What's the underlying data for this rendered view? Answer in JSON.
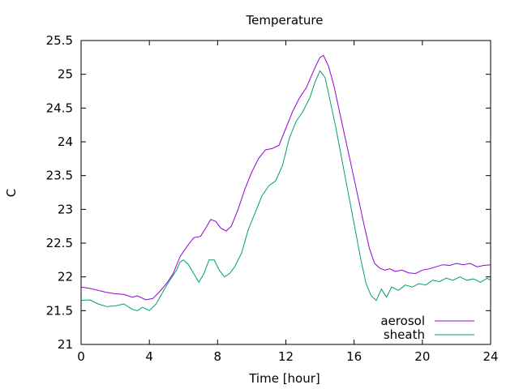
{
  "chart_data": {
    "type": "line",
    "title": "Temperature",
    "xlabel": "Time [hour]",
    "ylabel": "C",
    "xlim": [
      0,
      24
    ],
    "ylim": [
      21,
      25.5
    ],
    "xticks": [
      0,
      4,
      8,
      12,
      16,
      20,
      24
    ],
    "yticks": [
      21,
      21.5,
      22,
      22.5,
      23,
      23.5,
      24,
      24.5,
      25,
      25.5
    ],
    "grid": false,
    "legend_position": "bottom-right",
    "series": [
      {
        "name": "aerosol",
        "color": "#9400d3",
        "points": [
          [
            0,
            21.85
          ],
          [
            0.5,
            21.83
          ],
          [
            1.0,
            21.8
          ],
          [
            1.5,
            21.77
          ],
          [
            2.0,
            21.75
          ],
          [
            2.5,
            21.74
          ],
          [
            3.0,
            21.7
          ],
          [
            3.3,
            21.72
          ],
          [
            3.8,
            21.66
          ],
          [
            4.2,
            21.68
          ],
          [
            4.6,
            21.78
          ],
          [
            5.0,
            21.9
          ],
          [
            5.4,
            22.05
          ],
          [
            5.8,
            22.3
          ],
          [
            6.2,
            22.45
          ],
          [
            6.6,
            22.58
          ],
          [
            7.0,
            22.6
          ],
          [
            7.3,
            22.72
          ],
          [
            7.6,
            22.85
          ],
          [
            7.9,
            22.82
          ],
          [
            8.2,
            22.72
          ],
          [
            8.5,
            22.68
          ],
          [
            8.8,
            22.75
          ],
          [
            9.2,
            23.0
          ],
          [
            9.6,
            23.3
          ],
          [
            10.0,
            23.55
          ],
          [
            10.4,
            23.75
          ],
          [
            10.8,
            23.88
          ],
          [
            11.2,
            23.9
          ],
          [
            11.6,
            23.95
          ],
          [
            12.0,
            24.2
          ],
          [
            12.4,
            24.45
          ],
          [
            12.8,
            24.65
          ],
          [
            13.2,
            24.8
          ],
          [
            13.5,
            24.98
          ],
          [
            13.8,
            25.15
          ],
          [
            14.0,
            25.25
          ],
          [
            14.2,
            25.28
          ],
          [
            14.5,
            25.12
          ],
          [
            14.8,
            24.85
          ],
          [
            15.1,
            24.5
          ],
          [
            15.4,
            24.15
          ],
          [
            15.7,
            23.8
          ],
          [
            16.0,
            23.45
          ],
          [
            16.3,
            23.1
          ],
          [
            16.6,
            22.75
          ],
          [
            16.9,
            22.42
          ],
          [
            17.2,
            22.2
          ],
          [
            17.5,
            22.13
          ],
          [
            17.8,
            22.1
          ],
          [
            18.1,
            22.12
          ],
          [
            18.4,
            22.08
          ],
          [
            18.8,
            22.1
          ],
          [
            19.2,
            22.06
          ],
          [
            19.6,
            22.05
          ],
          [
            20.0,
            22.1
          ],
          [
            20.4,
            22.12
          ],
          [
            20.8,
            22.15
          ],
          [
            21.2,
            22.18
          ],
          [
            21.6,
            22.17
          ],
          [
            22.0,
            22.2
          ],
          [
            22.4,
            22.18
          ],
          [
            22.8,
            22.2
          ],
          [
            23.2,
            22.15
          ],
          [
            23.6,
            22.17
          ],
          [
            24.0,
            22.18
          ]
        ]
      },
      {
        "name": "sheath",
        "color": "#009e73",
        "points": [
          [
            0,
            21.65
          ],
          [
            0.5,
            21.66
          ],
          [
            1.0,
            21.6
          ],
          [
            1.5,
            21.56
          ],
          [
            2.0,
            21.57
          ],
          [
            2.5,
            21.6
          ],
          [
            3.0,
            21.52
          ],
          [
            3.3,
            21.5
          ],
          [
            3.6,
            21.55
          ],
          [
            4.0,
            21.5
          ],
          [
            4.4,
            21.6
          ],
          [
            4.8,
            21.78
          ],
          [
            5.2,
            21.95
          ],
          [
            5.6,
            22.1
          ],
          [
            5.8,
            22.22
          ],
          [
            6.0,
            22.25
          ],
          [
            6.3,
            22.18
          ],
          [
            6.6,
            22.05
          ],
          [
            6.9,
            21.92
          ],
          [
            7.2,
            22.05
          ],
          [
            7.5,
            22.25
          ],
          [
            7.8,
            22.25
          ],
          [
            8.1,
            22.1
          ],
          [
            8.4,
            22.0
          ],
          [
            8.7,
            22.05
          ],
          [
            9.0,
            22.15
          ],
          [
            9.4,
            22.35
          ],
          [
            9.8,
            22.7
          ],
          [
            10.2,
            22.95
          ],
          [
            10.6,
            23.2
          ],
          [
            11.0,
            23.35
          ],
          [
            11.4,
            23.42
          ],
          [
            11.8,
            23.65
          ],
          [
            12.2,
            24.05
          ],
          [
            12.6,
            24.3
          ],
          [
            13.0,
            24.45
          ],
          [
            13.4,
            24.65
          ],
          [
            13.7,
            24.88
          ],
          [
            14.0,
            25.05
          ],
          [
            14.3,
            24.95
          ],
          [
            14.6,
            24.6
          ],
          [
            14.9,
            24.25
          ],
          [
            15.2,
            23.85
          ],
          [
            15.5,
            23.45
          ],
          [
            15.8,
            23.05
          ],
          [
            16.1,
            22.65
          ],
          [
            16.4,
            22.25
          ],
          [
            16.7,
            21.9
          ],
          [
            17.0,
            21.72
          ],
          [
            17.3,
            21.65
          ],
          [
            17.6,
            21.82
          ],
          [
            17.9,
            21.7
          ],
          [
            18.2,
            21.85
          ],
          [
            18.6,
            21.8
          ],
          [
            19.0,
            21.88
          ],
          [
            19.4,
            21.85
          ],
          [
            19.8,
            21.9
          ],
          [
            20.2,
            21.88
          ],
          [
            20.6,
            21.95
          ],
          [
            21.0,
            21.93
          ],
          [
            21.4,
            21.98
          ],
          [
            21.8,
            21.95
          ],
          [
            22.2,
            22.0
          ],
          [
            22.6,
            21.95
          ],
          [
            23.0,
            21.97
          ],
          [
            23.4,
            21.92
          ],
          [
            23.8,
            21.98
          ],
          [
            24.0,
            21.95
          ]
        ]
      }
    ]
  }
}
